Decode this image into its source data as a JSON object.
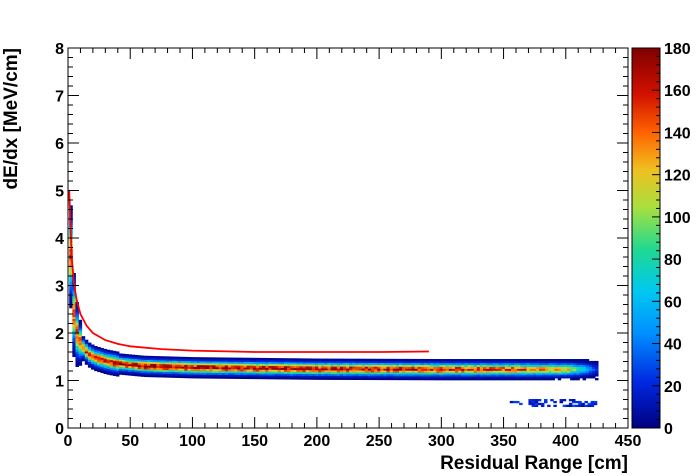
{
  "chart_data": {
    "type": "heatmap",
    "title": "",
    "xlabel": "Residual Range [cm]",
    "ylabel": "dE/dx [MeV/cm]",
    "xlim": [
      0,
      450
    ],
    "ylim": [
      0,
      8
    ],
    "x_ticks": [
      "0",
      "50",
      "100",
      "150",
      "200",
      "250",
      "300",
      "350",
      "400",
      "450"
    ],
    "y_ticks": [
      "0",
      "1",
      "2",
      "3",
      "4",
      "5",
      "6",
      "7",
      "8"
    ],
    "colorbar": {
      "range": [
        0,
        180
      ],
      "ticks": [
        "0",
        "20",
        "40",
        "60",
        "80",
        "100",
        "120",
        "140",
        "160",
        "180"
      ]
    },
    "band": {
      "x_range": [
        1,
        424
      ],
      "center_y": [
        [
          1,
          3.6
        ],
        [
          2,
          2.9
        ],
        [
          3,
          2.5
        ],
        [
          4,
          2.25
        ],
        [
          5,
          2.05
        ],
        [
          7,
          1.88
        ],
        [
          10,
          1.7
        ],
        [
          15,
          1.55
        ],
        [
          20,
          1.47
        ],
        [
          30,
          1.39
        ],
        [
          40,
          1.34
        ],
        [
          60,
          1.29
        ],
        [
          100,
          1.26
        ],
        [
          200,
          1.23
        ],
        [
          300,
          1.22
        ],
        [
          400,
          1.22
        ],
        [
          424,
          1.22
        ]
      ],
      "peak_counts_at_x": [
        [
          20,
          150
        ],
        [
          60,
          175
        ],
        [
          150,
          170
        ],
        [
          250,
          165
        ],
        [
          350,
          150
        ],
        [
          400,
          120
        ],
        [
          424,
          20
        ]
      ]
    },
    "sparse_cluster": {
      "x_range": [
        350,
        425
      ],
      "y_range": [
        0.45,
        0.6
      ],
      "max_count": 30
    },
    "series": [
      {
        "color": "#ff0000",
        "x": [
          1,
          2,
          3,
          5,
          7,
          10,
          15,
          20,
          30,
          40,
          50,
          75,
          100,
          150,
          200,
          250,
          290
        ],
        "y": [
          5.0,
          4.3,
          3.6,
          3.0,
          2.7,
          2.4,
          2.15,
          2.0,
          1.85,
          1.77,
          1.72,
          1.66,
          1.63,
          1.6,
          1.6,
          1.6,
          1.61
        ]
      }
    ]
  }
}
